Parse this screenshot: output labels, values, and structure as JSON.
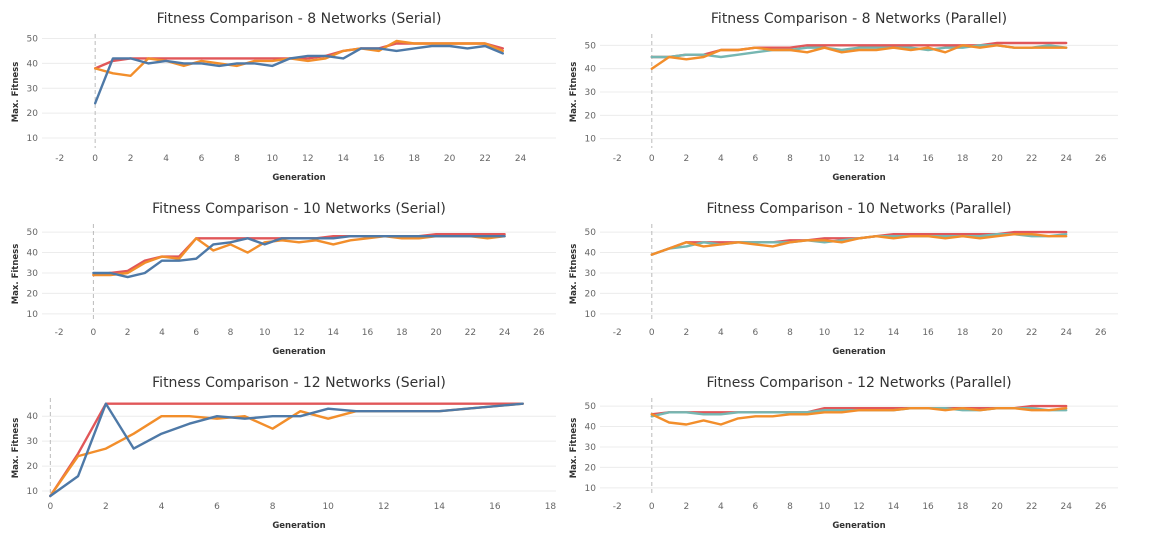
{
  "chart_data": [
    {
      "type": "line",
      "title": "Fitness Comparison - 8 Networks (Serial)",
      "xlabel": "Generation",
      "ylabel": "Max. Fitness",
      "xlim": [
        -3,
        26
      ],
      "ylim": [
        6,
        51
      ],
      "xticks": [
        -2,
        0,
        2,
        4,
        6,
        8,
        10,
        12,
        14,
        16,
        18,
        20,
        22,
        24
      ],
      "yticks": [
        10,
        20,
        30,
        40,
        50
      ],
      "grid": true,
      "series": [
        {
          "color": "#e15759",
          "x": [
            0,
            1,
            2,
            3,
            4,
            5,
            6,
            7,
            8,
            9,
            10,
            11,
            12,
            13,
            14,
            15,
            16,
            17,
            18,
            19,
            20,
            21,
            22,
            23
          ],
          "values": [
            38,
            41,
            42,
            42,
            42,
            42,
            42,
            42,
            42,
            42,
            42,
            42,
            42,
            43,
            45,
            46,
            46,
            48,
            48,
            48,
            48,
            48,
            48,
            46
          ]
        },
        {
          "color": "#f28e2b",
          "x": [
            0,
            1,
            2,
            3,
            4,
            5,
            6,
            7,
            8,
            9,
            10,
            11,
            12,
            13,
            14,
            15,
            16,
            17,
            18,
            19,
            20,
            21,
            22,
            23
          ],
          "values": [
            38,
            36,
            35,
            42,
            41,
            39,
            41,
            40,
            39,
            41,
            41,
            42,
            41,
            42,
            45,
            46,
            45,
            49,
            48,
            48,
            48,
            48,
            48,
            45
          ]
        },
        {
          "color": "#4e79a7",
          "x": [
            0,
            1,
            2,
            3,
            4,
            5,
            6,
            7,
            8,
            9,
            10,
            11,
            12,
            13,
            14,
            15,
            16,
            17,
            18,
            19,
            20,
            21,
            22,
            23
          ],
          "values": [
            24,
            42,
            42,
            40,
            41,
            40,
            40,
            39,
            40,
            40,
            39,
            42,
            43,
            43,
            42,
            46,
            46,
            45,
            46,
            47,
            47,
            46,
            47,
            44
          ]
        }
      ]
    },
    {
      "type": "line",
      "title": "Fitness Comparison - 8 Networks (Parallel)",
      "xlabel": "Generation",
      "ylabel": "Max. Fitness",
      "xlim": [
        -3,
        27
      ],
      "ylim": [
        6,
        54
      ],
      "xticks": [
        -2,
        0,
        2,
        4,
        6,
        8,
        10,
        12,
        14,
        16,
        18,
        20,
        22,
        24,
        26
      ],
      "yticks": [
        10,
        20,
        30,
        40,
        50
      ],
      "grid": true,
      "series": [
        {
          "color": "#e15759",
          "x": [
            0,
            1,
            2,
            3,
            4,
            5,
            6,
            7,
            8,
            9,
            10,
            11,
            12,
            13,
            14,
            15,
            16,
            17,
            18,
            19,
            20,
            21,
            22,
            23,
            24
          ],
          "values": [
            45,
            45,
            46,
            46,
            48,
            48,
            49,
            49,
            49,
            50,
            50,
            50,
            50,
            50,
            50,
            50,
            50,
            50,
            50,
            50,
            51,
            51,
            51,
            51,
            51
          ]
        },
        {
          "color": "#76b7b2",
          "x": [
            0,
            1,
            2,
            3,
            4,
            5,
            6,
            7,
            8,
            9,
            10,
            11,
            12,
            13,
            14,
            15,
            16,
            17,
            18,
            19,
            20,
            21,
            22,
            23,
            24
          ],
          "values": [
            45,
            45,
            46,
            46,
            45,
            46,
            47,
            48,
            48,
            49,
            49,
            48,
            49,
            49,
            49,
            49,
            48,
            49,
            49,
            50,
            50,
            49,
            49,
            50,
            49
          ]
        },
        {
          "color": "#f28e2b",
          "x": [
            0,
            1,
            2,
            3,
            4,
            5,
            6,
            7,
            8,
            9,
            10,
            11,
            12,
            13,
            14,
            15,
            16,
            17,
            18,
            19,
            20,
            21,
            22,
            23,
            24
          ],
          "values": [
            40,
            45,
            44,
            45,
            48,
            48,
            49,
            48,
            48,
            47,
            49,
            47,
            48,
            48,
            49,
            48,
            49,
            47,
            50,
            49,
            50,
            49,
            49,
            49,
            49
          ]
        }
      ]
    },
    {
      "type": "line",
      "title": "Fitness Comparison - 10 Networks (Serial)",
      "xlabel": "Generation",
      "ylabel": "Max. Fitness",
      "xlim": [
        -3,
        27
      ],
      "ylim": [
        6,
        53
      ],
      "xticks": [
        -2,
        0,
        2,
        4,
        6,
        8,
        10,
        12,
        14,
        16,
        18,
        20,
        22,
        24,
        26
      ],
      "yticks": [
        10,
        20,
        30,
        40,
        50
      ],
      "grid": true,
      "series": [
        {
          "color": "#e15759",
          "x": [
            0,
            1,
            2,
            3,
            4,
            5,
            6,
            7,
            8,
            9,
            10,
            11,
            12,
            13,
            14,
            15,
            16,
            17,
            18,
            19,
            20,
            21,
            22,
            23,
            24
          ],
          "values": [
            29,
            30,
            31,
            36,
            38,
            38,
            47,
            47,
            47,
            47,
            47,
            47,
            47,
            47,
            48,
            48,
            48,
            48,
            48,
            48,
            49,
            49,
            49,
            49,
            49
          ]
        },
        {
          "color": "#f28e2b",
          "x": [
            0,
            1,
            2,
            3,
            4,
            5,
            6,
            7,
            8,
            9,
            10,
            11,
            12,
            13,
            14,
            15,
            16,
            17,
            18,
            19,
            20,
            21,
            22,
            23,
            24
          ],
          "values": [
            29,
            29,
            30,
            35,
            38,
            37,
            47,
            41,
            44,
            40,
            45,
            46,
            45,
            46,
            44,
            46,
            47,
            48,
            47,
            47,
            48,
            48,
            48,
            47,
            48
          ]
        },
        {
          "color": "#4e79a7",
          "x": [
            0,
            1,
            2,
            3,
            4,
            5,
            6,
            7,
            8,
            9,
            10,
            11,
            12,
            13,
            14,
            15,
            16,
            17,
            18,
            19,
            20,
            21,
            22,
            23,
            24
          ],
          "values": [
            30,
            30,
            28,
            30,
            36,
            36,
            37,
            44,
            45,
            47,
            44,
            47,
            47,
            47,
            47,
            48,
            48,
            48,
            48,
            48,
            48,
            48,
            48,
            48,
            48
          ]
        }
      ]
    },
    {
      "type": "line",
      "title": "Fitness Comparison - 10 Networks (Parallel)",
      "xlabel": "Generation",
      "ylabel": "Max. Fitness",
      "xlim": [
        -3,
        27
      ],
      "ylim": [
        6,
        53
      ],
      "xticks": [
        -2,
        0,
        2,
        4,
        6,
        8,
        10,
        12,
        14,
        16,
        18,
        20,
        22,
        24,
        26
      ],
      "yticks": [
        10,
        20,
        30,
        40,
        50
      ],
      "grid": true,
      "series": [
        {
          "color": "#e15759",
          "x": [
            0,
            1,
            2,
            3,
            4,
            5,
            6,
            7,
            8,
            9,
            10,
            11,
            12,
            13,
            14,
            15,
            16,
            17,
            18,
            19,
            20,
            21,
            22,
            23,
            24
          ],
          "values": [
            39,
            42,
            45,
            45,
            45,
            45,
            45,
            45,
            46,
            46,
            47,
            47,
            47,
            48,
            49,
            49,
            49,
            49,
            49,
            49,
            49,
            50,
            50,
            50,
            50
          ]
        },
        {
          "color": "#76b7b2",
          "x": [
            0,
            1,
            2,
            3,
            4,
            5,
            6,
            7,
            8,
            9,
            10,
            11,
            12,
            13,
            14,
            15,
            16,
            17,
            18,
            19,
            20,
            21,
            22,
            23,
            24
          ],
          "values": [
            39,
            42,
            43,
            45,
            44,
            45,
            45,
            45,
            45,
            46,
            45,
            46,
            47,
            48,
            48,
            48,
            48,
            48,
            48,
            48,
            49,
            49,
            48,
            48,
            49
          ]
        },
        {
          "color": "#f28e2b",
          "x": [
            0,
            1,
            2,
            3,
            4,
            5,
            6,
            7,
            8,
            9,
            10,
            11,
            12,
            13,
            14,
            15,
            16,
            17,
            18,
            19,
            20,
            21,
            22,
            23,
            24
          ],
          "values": [
            39,
            42,
            45,
            43,
            44,
            45,
            44,
            43,
            45,
            46,
            46,
            45,
            47,
            48,
            47,
            48,
            48,
            47,
            48,
            47,
            48,
            49,
            49,
            48,
            48
          ]
        }
      ]
    },
    {
      "type": "line",
      "title": "Fitness Comparison - 12 Networks (Serial)",
      "xlabel": "Generation",
      "ylabel": "Max. Fitness",
      "xlim": [
        -0.3,
        18.2
      ],
      "ylim": [
        8,
        46.5
      ],
      "xticks": [
        0,
        2,
        4,
        6,
        8,
        10,
        12,
        14,
        16,
        18
      ],
      "yticks": [
        10,
        20,
        30,
        40
      ],
      "grid": true,
      "series": [
        {
          "color": "#e15759",
          "x": [
            0,
            1,
            2,
            3,
            4,
            5,
            6,
            7,
            8,
            9,
            10,
            11,
            12,
            13,
            14,
            15,
            16,
            17
          ],
          "values": [
            8,
            25,
            45,
            45,
            45,
            45,
            45,
            45,
            45,
            45,
            45,
            45,
            45,
            45,
            45,
            45,
            45,
            45
          ]
        },
        {
          "color": "#f28e2b",
          "x": [
            0,
            1,
            2,
            3,
            4,
            5,
            6,
            7,
            8,
            9,
            10,
            11,
            12,
            13,
            14,
            15,
            16,
            17
          ],
          "values": [
            8,
            24,
            27,
            33,
            40,
            40,
            39,
            40,
            35,
            42,
            39,
            42,
            42,
            42,
            42,
            43,
            44,
            45
          ]
        },
        {
          "color": "#4e79a7",
          "x": [
            0,
            1,
            2,
            3,
            4,
            5,
            6,
            7,
            8,
            9,
            10,
            11,
            12,
            13,
            14,
            15,
            16,
            17
          ],
          "values": [
            8,
            16,
            45,
            27,
            33,
            37,
            40,
            39,
            40,
            40,
            43,
            42,
            42,
            42,
            42,
            43,
            44,
            45
          ]
        }
      ]
    },
    {
      "type": "line",
      "title": "Fitness Comparison - 12 Networks (Parallel)",
      "xlabel": "Generation",
      "ylabel": "Max. Fitness",
      "xlim": [
        -3,
        27
      ],
      "ylim": [
        6,
        53
      ],
      "xticks": [
        -2,
        0,
        2,
        4,
        6,
        8,
        10,
        12,
        14,
        16,
        18,
        20,
        22,
        24,
        26
      ],
      "yticks": [
        10,
        20,
        30,
        40,
        50
      ],
      "grid": true,
      "series": [
        {
          "color": "#e15759",
          "x": [
            0,
            1,
            2,
            3,
            4,
            5,
            6,
            7,
            8,
            9,
            10,
            11,
            12,
            13,
            14,
            15,
            16,
            17,
            18,
            19,
            20,
            21,
            22,
            23,
            24
          ],
          "values": [
            46,
            47,
            47,
            47,
            47,
            47,
            47,
            47,
            47,
            47,
            49,
            49,
            49,
            49,
            49,
            49,
            49,
            49,
            49,
            49,
            49,
            49,
            50,
            50,
            50
          ]
        },
        {
          "color": "#76b7b2",
          "x": [
            0,
            1,
            2,
            3,
            4,
            5,
            6,
            7,
            8,
            9,
            10,
            11,
            12,
            13,
            14,
            15,
            16,
            17,
            18,
            19,
            20,
            21,
            22,
            23,
            24
          ],
          "values": [
            45,
            47,
            47,
            46,
            46,
            47,
            47,
            47,
            47,
            47,
            48,
            48,
            48,
            48,
            48,
            49,
            49,
            49,
            48,
            48,
            49,
            49,
            49,
            48,
            48
          ]
        },
        {
          "color": "#f28e2b",
          "x": [
            0,
            1,
            2,
            3,
            4,
            5,
            6,
            7,
            8,
            9,
            10,
            11,
            12,
            13,
            14,
            15,
            16,
            17,
            18,
            19,
            20,
            21,
            22,
            23,
            24
          ],
          "values": [
            46,
            42,
            41,
            43,
            41,
            44,
            45,
            45,
            46,
            46,
            47,
            47,
            48,
            48,
            48,
            49,
            49,
            48,
            49,
            48,
            49,
            49,
            48,
            48,
            49
          ]
        }
      ]
    }
  ]
}
